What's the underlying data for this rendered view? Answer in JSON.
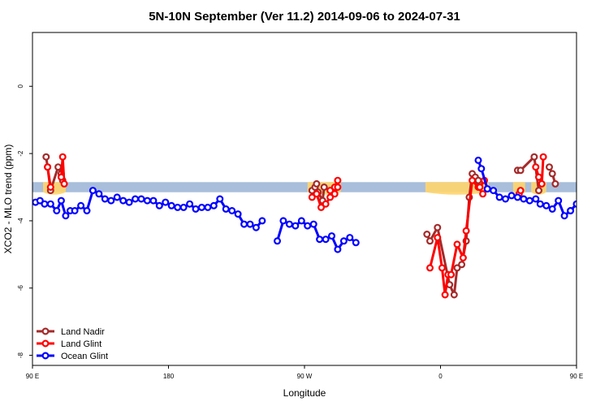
{
  "chart_data": {
    "type": "line",
    "title": "5N-10N September (Ver 11.2)   2014-09-06 to 2024-07-31",
    "xlabel": "Longitude",
    "ylabel": "XCO2 - MLO trend (ppm)",
    "xlim": [
      90,
      450
    ],
    "ylim": [
      -8.3,
      1.6
    ],
    "x_ticks": [
      {
        "value": 90,
        "label": "90 E"
      },
      {
        "value": 180,
        "label": "180"
      },
      {
        "value": 270,
        "label": "90 W"
      },
      {
        "value": 360,
        "label": "0"
      },
      {
        "value": 450,
        "label": "90 E"
      },
      {
        "value": 540,
        "label": "180"
      }
    ],
    "y_ticks": [
      {
        "value": 0,
        "label": "0"
      },
      {
        "value": -2,
        "label": "-2"
      },
      {
        "value": -4,
        "label": "-4"
      },
      {
        "value": -6,
        "label": "-6"
      },
      {
        "value": -8,
        "label": "-8"
      }
    ],
    "grid": false,
    "legend_position": "bottom-left",
    "background_band": {
      "color": "#a8bedb",
      "y_range": [
        -3.15,
        -2.85
      ]
    },
    "land_fill_color": "#ffd56b",
    "series": [
      {
        "name": "Land Nadir",
        "color": "#a52a2a",
        "segments": [
          [
            [
              99,
              -2.1
            ],
            [
              100,
              -2.4
            ],
            [
              102,
              -3.1
            ],
            [
              107,
              -2.4
            ],
            [
              109,
              -2.6
            ],
            [
              110,
              -2.8
            ]
          ],
          [
            [
              275,
              -3.1
            ],
            [
              277,
              -3.0
            ],
            [
              278,
              -2.9
            ],
            [
              279,
              -3.15
            ],
            [
              282,
              -3.4
            ],
            [
              283,
              -3.0
            ]
          ],
          [
            [
              351,
              -4.4
            ],
            [
              353,
              -4.6
            ],
            [
              358,
              -4.2
            ],
            [
              366,
              -5.9
            ],
            [
              369,
              -6.2
            ],
            [
              371,
              -5.4
            ],
            [
              374,
              -5.3
            ],
            [
              377,
              -4.6
            ],
            [
              379,
              -3.3
            ],
            [
              381,
              -2.6
            ],
            [
              383,
              -2.7
            ],
            [
              385,
              -2.8
            ]
          ],
          [
            [
              411,
              -2.5
            ],
            [
              413,
              -2.5
            ],
            [
              422,
              -2.1
            ],
            [
              425,
              -3.1
            ]
          ],
          [
            [
              432,
              -2.4
            ],
            [
              434,
              -2.6
            ],
            [
              436,
              -2.9
            ]
          ]
        ]
      },
      {
        "name": "Land Glint",
        "color": "#ff0000",
        "segments": [
          [
            [
              100,
              -2.4
            ],
            [
              102,
              -3.0
            ]
          ],
          [
            [
              109,
              -2.7
            ],
            [
              110,
              -2.1
            ],
            [
              111,
              -2.9
            ]
          ],
          [
            [
              275,
              -3.3
            ],
            [
              278,
              -3.2
            ],
            [
              281,
              -3.6
            ],
            [
              284,
              -3.5
            ],
            [
              287,
              -3.3
            ],
            [
              290,
              -3.0
            ],
            [
              292,
              -2.8
            ]
          ],
          [
            [
              287,
              -3.1
            ],
            [
              290,
              -3.2
            ],
            [
              292,
              -3.0
            ]
          ],
          [
            [
              353,
              -5.4
            ],
            [
              358,
              -4.5
            ],
            [
              361,
              -5.4
            ],
            [
              363,
              -6.2
            ],
            [
              365,
              -5.6
            ],
            [
              367,
              -5.6
            ],
            [
              371,
              -4.7
            ],
            [
              375,
              -5.1
            ],
            [
              377,
              -4.3
            ],
            [
              381,
              -2.8
            ],
            [
              385,
              -3.0
            ],
            [
              388,
              -3.2
            ]
          ],
          [
            [
              386,
              -3.0
            ],
            [
              389,
              -2.8
            ]
          ],
          [
            [
              412,
              -3.2
            ],
            [
              413,
              -3.1
            ]
          ],
          [
            [
              423,
              -2.4
            ],
            [
              425,
              -2.7
            ],
            [
              427,
              -2.9
            ],
            [
              428,
              -2.1
            ]
          ]
        ]
      },
      {
        "name": "Ocean Glint",
        "color": "#0000ff",
        "segments": [
          [
            [
              92,
              -3.45
            ],
            [
              95,
              -3.4
            ],
            [
              98,
              -3.5
            ],
            [
              102,
              -3.5
            ],
            [
              106,
              -3.7
            ],
            [
              109,
              -3.4
            ],
            [
              112,
              -3.85
            ],
            [
              115,
              -3.7
            ],
            [
              118,
              -3.7
            ],
            [
              122,
              -3.55
            ],
            [
              126,
              -3.7
            ],
            [
              130,
              -3.1
            ],
            [
              134,
              -3.2
            ],
            [
              138,
              -3.35
            ],
            [
              142,
              -3.4
            ],
            [
              146,
              -3.3
            ],
            [
              150,
              -3.4
            ],
            [
              154,
              -3.45
            ],
            [
              158,
              -3.35
            ],
            [
              162,
              -3.35
            ],
            [
              166,
              -3.4
            ],
            [
              170,
              -3.4
            ],
            [
              174,
              -3.55
            ],
            [
              178,
              -3.45
            ],
            [
              182,
              -3.55
            ],
            [
              186,
              -3.6
            ],
            [
              190,
              -3.6
            ],
            [
              194,
              -3.5
            ],
            [
              198,
              -3.65
            ],
            [
              202,
              -3.6
            ],
            [
              206,
              -3.6
            ],
            [
              210,
              -3.55
            ],
            [
              214,
              -3.35
            ],
            [
              218,
              -3.65
            ],
            [
              222,
              -3.7
            ],
            [
              226,
              -3.8
            ],
            [
              230,
              -4.1
            ],
            [
              234,
              -4.1
            ],
            [
              238,
              -4.2
            ],
            [
              242,
              -4.0
            ]
          ],
          [
            [
              252,
              -4.6
            ],
            [
              256,
              -4.0
            ],
            [
              260,
              -4.1
            ],
            [
              264,
              -4.15
            ],
            [
              268,
              -4.0
            ],
            [
              272,
              -4.15
            ],
            [
              276,
              -4.1
            ],
            [
              280,
              -4.55
            ],
            [
              284,
              -4.55
            ],
            [
              288,
              -4.45
            ],
            [
              292,
              -4.85
            ],
            [
              296,
              -4.6
            ],
            [
              300,
              -4.5
            ],
            [
              304,
              -4.65
            ]
          ],
          [
            [
              385,
              -2.2
            ],
            [
              387,
              -2.45
            ],
            [
              391,
              -3.05
            ],
            [
              395,
              -3.1
            ],
            [
              399,
              -3.3
            ],
            [
              403,
              -3.35
            ],
            [
              407,
              -3.25
            ],
            [
              411,
              -3.3
            ],
            [
              415,
              -3.35
            ],
            [
              419,
              -3.4
            ],
            [
              423,
              -3.35
            ],
            [
              426,
              -3.5
            ],
            [
              430,
              -3.55
            ],
            [
              434,
              -3.65
            ],
            [
              438,
              -3.4
            ],
            [
              442,
              -3.85
            ],
            [
              446,
              -3.7
            ]
          ],
          [
            [
              446,
              -3.7
            ],
            [
              450,
              -3.5
            ],
            [
              454,
              -3.45
            ],
            [
              458,
              -3.6
            ],
            [
              462,
              -3.5
            ],
            [
              466,
              -3.2
            ],
            [
              470,
              -3.35
            ],
            [
              474,
              -3.4
            ]
          ]
        ]
      }
    ]
  }
}
